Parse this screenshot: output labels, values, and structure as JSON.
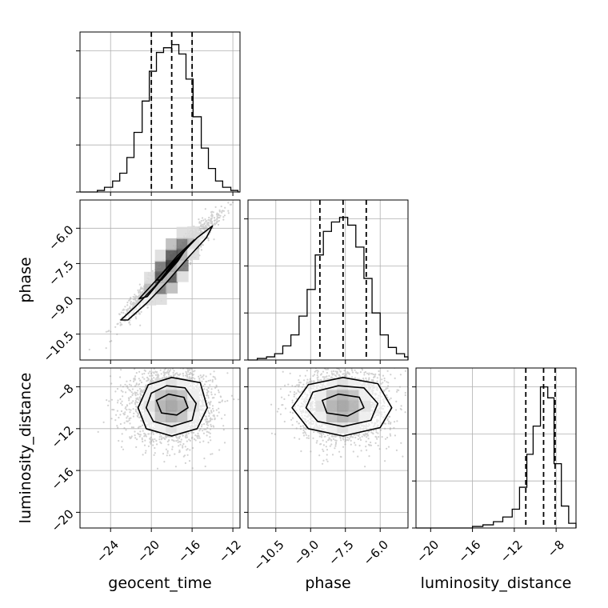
{
  "chart_data": {
    "type": "corner",
    "parameters": [
      "geocent_time",
      "phase",
      "luminosity_distance"
    ],
    "grid": true,
    "histograms": [
      {
        "parameter": "geocent_time",
        "xlim": [
          -27,
          -11.3
        ],
        "edges": [
          -27,
          -25.3,
          -24.6,
          -23.8,
          -23.1,
          -22.4,
          -21.7,
          -20.9,
          -20.2,
          -19.5,
          -18.8,
          -18.0,
          -17.3,
          -16.6,
          -15.9,
          -15.1,
          -14.4,
          -13.7,
          -13.0,
          -12.2,
          -11.5,
          -11.3
        ],
        "counts": [
          0,
          0.01,
          0.03,
          0.07,
          0.12,
          0.22,
          0.38,
          0.58,
          0.77,
          0.89,
          0.92,
          0.94,
          0.88,
          0.72,
          0.48,
          0.28,
          0.15,
          0.07,
          0.03,
          0.01,
          0
        ],
        "quantiles": [
          -20.0,
          -18.0,
          -16.0
        ]
      },
      {
        "parameter": "phase",
        "xlim": [
          -11.7,
          -4.8
        ],
        "edges": [
          -11.7,
          -11.3,
          -10.9,
          -10.55,
          -10.2,
          -9.85,
          -9.5,
          -9.15,
          -8.8,
          -8.45,
          -8.1,
          -7.75,
          -7.4,
          -7.05,
          -6.7,
          -6.35,
          -6.0,
          -5.65,
          -5.3,
          -4.95,
          -4.8
        ],
        "counts": [
          0,
          0.01,
          0.02,
          0.04,
          0.09,
          0.16,
          0.28,
          0.45,
          0.67,
          0.82,
          0.88,
          0.91,
          0.86,
          0.72,
          0.52,
          0.3,
          0.16,
          0.08,
          0.04,
          0.02
        ],
        "quantiles": [
          -8.6,
          -7.6,
          -6.6
        ]
      },
      {
        "parameter": "luminosity_distance",
        "xlim": [
          -21.4,
          -6.1
        ],
        "edges": [
          -21.4,
          -16.0,
          -15.0,
          -14.0,
          -13.1,
          -12.2,
          -11.5,
          -10.8,
          -10.2,
          -9.5,
          -8.8,
          -8.2,
          -7.5,
          -6.8,
          -6.1
        ],
        "counts": [
          0,
          0.01,
          0.02,
          0.04,
          0.07,
          0.12,
          0.26,
          0.47,
          0.65,
          0.9,
          0.83,
          0.41,
          0.14,
          0.03
        ],
        "quantiles": [
          -10.9,
          -9.2,
          -8.1
        ]
      }
    ],
    "pairs": [
      {
        "x_parameter": "geocent_time",
        "y_parameter": "phase",
        "xlim": [
          -27,
          -11.3
        ],
        "ylim": [
          -11.6,
          -4.8
        ],
        "mean": [
          -18.0,
          -7.6
        ],
        "std": [
          2.0,
          0.95
        ],
        "correlation": 0.96,
        "contours": [
          [
            [
              -23.0,
              -9.9
            ],
            [
              -21.5,
              -9.3
            ],
            [
              -19.5,
              -8.4
            ],
            [
              -17.5,
              -7.3
            ],
            [
              -15.5,
              -6.4
            ],
            [
              -14.0,
              -5.9
            ],
            [
              -14.6,
              -6.4
            ],
            [
              -16.5,
              -7.3
            ],
            [
              -18.5,
              -8.3
            ],
            [
              -20.5,
              -9.2
            ],
            [
              -22.3,
              -9.9
            ]
          ],
          [
            [
              -21.2,
              -9.0
            ],
            [
              -19.5,
              -8.2
            ],
            [
              -17.5,
              -7.2
            ],
            [
              -15.8,
              -6.5
            ],
            [
              -16.6,
              -6.9
            ],
            [
              -18.5,
              -7.9
            ],
            [
              -20.4,
              -8.9
            ]
          ],
          [
            [
              -19.5,
              -8.2
            ],
            [
              -18.0,
              -7.5
            ],
            [
              -16.8,
              -7.0
            ],
            [
              -17.4,
              -7.4
            ],
            [
              -19.0,
              -8.2
            ]
          ]
        ]
      },
      {
        "x_parameter": "geocent_time",
        "y_parameter": "luminosity_distance",
        "xlim": [
          -27,
          -11.3
        ],
        "ylim": [
          -21.5,
          -6.2
        ],
        "mean": [
          -18.0,
          -9.8
        ],
        "std": [
          2.0,
          1.7
        ],
        "correlation": 0.0,
        "contours": [
          [
            [
              -20.5,
              -12.0
            ],
            [
              -18.0,
              -12.7
            ],
            [
              -15.5,
              -12.0
            ],
            [
              -14.5,
              -10.0
            ],
            [
              -15.2,
              -7.6
            ],
            [
              -18.0,
              -7.1
            ],
            [
              -20.3,
              -7.8
            ],
            [
              -21.3,
              -10.0
            ]
          ],
          [
            [
              -19.8,
              -11.3
            ],
            [
              -18.0,
              -11.8
            ],
            [
              -16.0,
              -11.2
            ],
            [
              -15.6,
              -9.6
            ],
            [
              -16.7,
              -8.1
            ],
            [
              -18.5,
              -7.9
            ],
            [
              -20.0,
              -8.6
            ],
            [
              -20.5,
              -10.0
            ]
          ],
          [
            [
              -19.0,
              -10.5
            ],
            [
              -17.5,
              -10.7
            ],
            [
              -16.4,
              -10.0
            ],
            [
              -16.8,
              -9.0
            ],
            [
              -18.3,
              -8.7
            ],
            [
              -19.5,
              -9.3
            ]
          ]
        ]
      },
      {
        "x_parameter": "phase",
        "y_parameter": "luminosity_distance",
        "xlim": [
          -11.7,
          -4.8
        ],
        "ylim": [
          -21.5,
          -6.2
        ],
        "mean": [
          -7.6,
          -9.8
        ],
        "std": [
          0.95,
          1.7
        ],
        "correlation": 0.0,
        "contours": [
          [
            [
              -9.1,
              -12.0
            ],
            [
              -7.6,
              -12.7
            ],
            [
              -6.0,
              -11.9
            ],
            [
              -5.5,
              -10.0
            ],
            [
              -6.1,
              -7.7
            ],
            [
              -7.6,
              -7.1
            ],
            [
              -9.1,
              -7.8
            ],
            [
              -9.8,
              -10.0
            ]
          ],
          [
            [
              -8.7,
              -11.3
            ],
            [
              -7.6,
              -11.8
            ],
            [
              -6.4,
              -11.2
            ],
            [
              -6.1,
              -9.6
            ],
            [
              -6.7,
              -8.1
            ],
            [
              -7.8,
              -7.9
            ],
            [
              -8.9,
              -8.5
            ],
            [
              -9.2,
              -10.0
            ]
          ],
          [
            [
              -8.3,
              -10.5
            ],
            [
              -7.4,
              -10.8
            ],
            [
              -6.7,
              -10.0
            ],
            [
              -6.9,
              -9.0
            ],
            [
              -7.8,
              -8.7
            ],
            [
              -8.5,
              -9.3
            ]
          ]
        ]
      }
    ],
    "ticks": {
      "geocent_time": [
        -24,
        -20,
        -16,
        -12
      ],
      "phase": [
        -10.5,
        -9.0,
        -7.5,
        -6.0
      ],
      "luminosity_distance": [
        -20,
        -16,
        -12,
        -8
      ]
    },
    "tick_labels": {
      "geocent_time": [
        "−24",
        "−20",
        "−16",
        "−12"
      ],
      "phase": [
        "−10.5",
        "−9.0",
        "−7.5",
        "−6.0"
      ],
      "luminosity_distance": [
        "−20",
        "−16",
        "−12",
        "−8"
      ]
    }
  }
}
